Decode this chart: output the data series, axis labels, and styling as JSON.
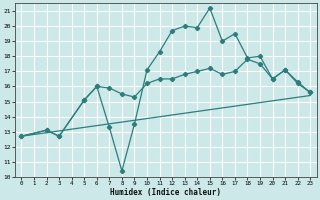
{
  "xlabel": "Humidex (Indice chaleur)",
  "xlim": [
    -0.5,
    23.5
  ],
  "ylim": [
    10,
    21.5
  ],
  "yticks": [
    10,
    11,
    12,
    13,
    14,
    15,
    16,
    17,
    18,
    19,
    20,
    21
  ],
  "xticks": [
    0,
    1,
    2,
    3,
    4,
    5,
    6,
    7,
    8,
    9,
    10,
    11,
    12,
    13,
    14,
    15,
    16,
    17,
    18,
    19,
    20,
    21,
    22,
    23
  ],
  "bg_color": "#cce8e8",
  "grid_color": "#ffffff",
  "line_color": "#2d7d7d",
  "line1_x": [
    0,
    2,
    3,
    5,
    6,
    7,
    8,
    9,
    10,
    11,
    12,
    13,
    14,
    15,
    16,
    17,
    18,
    19,
    20,
    21,
    22,
    23
  ],
  "line1_y": [
    12.7,
    13.1,
    12.7,
    15.1,
    16.0,
    13.3,
    10.4,
    13.5,
    17.1,
    18.3,
    19.7,
    20.0,
    19.9,
    21.2,
    19.0,
    19.5,
    17.9,
    18.0,
    16.5,
    17.1,
    16.2,
    15.6
  ],
  "line2_x": [
    0,
    2,
    3,
    5,
    6,
    7,
    8,
    9,
    10,
    11,
    12,
    13,
    14,
    15,
    16,
    17,
    18,
    19,
    20,
    21,
    22,
    23
  ],
  "line2_y": [
    12.7,
    13.1,
    12.7,
    15.1,
    16.0,
    15.9,
    15.5,
    15.3,
    16.2,
    16.5,
    16.5,
    16.8,
    17.0,
    17.2,
    16.8,
    17.0,
    17.8,
    17.5,
    16.5,
    17.1,
    16.3,
    15.6
  ],
  "line3_x": [
    0,
    23
  ],
  "line3_y": [
    12.7,
    15.4
  ]
}
